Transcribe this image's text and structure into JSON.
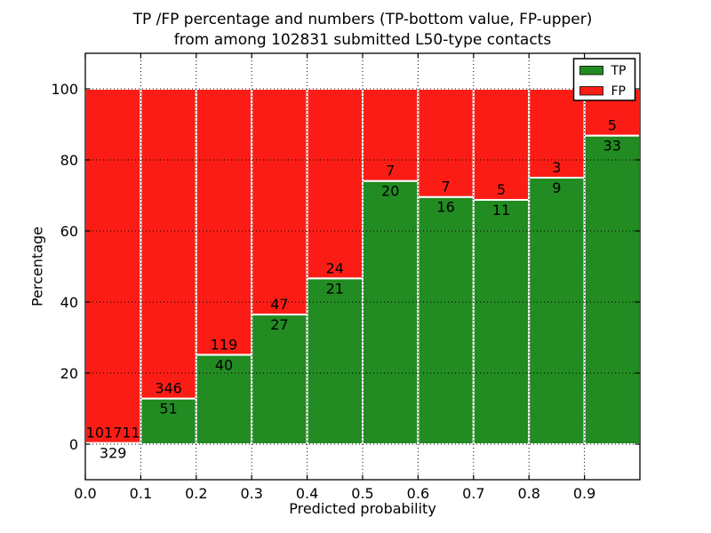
{
  "figure": {
    "background": "#ffffff",
    "title_line1": "TP /FP percentage and numbers (TP-bottom value, FP-upper)",
    "title_line2": "from among 102831 submitted L50-type contacts"
  },
  "chart_data": {
    "type": "bar",
    "stacked": true,
    "normalized": "percent_of_bin_total",
    "title": "TP /FP percentage and numbers (TP-bottom value, FP-upper) from among 102831 submitted L50-type contacts",
    "xlabel": "Predicted probability",
    "ylabel": "Percentage",
    "xlim": [
      0.0,
      1.0
    ],
    "ylim": [
      -10,
      110
    ],
    "grid": true,
    "grid_style": "dotted",
    "bin_width": 0.1,
    "bin_starts": [
      0.0,
      0.1,
      0.2,
      0.3,
      0.4,
      0.5,
      0.6,
      0.7,
      0.8,
      0.9
    ],
    "xtick_labels": [
      "0.0",
      "0.1",
      "0.2",
      "0.3",
      "0.4",
      "0.5",
      "0.6",
      "0.7",
      "0.8",
      "0.9"
    ],
    "ytick_values": [
      0,
      20,
      40,
      60,
      80,
      100
    ],
    "series": [
      {
        "name": "TP",
        "color": "#228b22",
        "counts": [
          329,
          51,
          40,
          27,
          21,
          20,
          16,
          11,
          9,
          33
        ]
      },
      {
        "name": "FP",
        "color": "#fb1d15",
        "counts": [
          101711,
          346,
          119,
          47,
          24,
          7,
          7,
          5,
          3,
          5
        ]
      }
    ],
    "tp_percent_of_bin": [
      0.32,
      12.85,
      25.16,
      36.49,
      46.67,
      74.07,
      69.57,
      68.75,
      75.0,
      86.84
    ],
    "legend": {
      "position": "upper right",
      "entries": [
        {
          "label": "TP",
          "color": "#228b22"
        },
        {
          "label": "FP",
          "color": "#fb1d15"
        }
      ]
    },
    "bar_edge_color": "#ffffff",
    "label_color": "#000000",
    "spine_color": "#000000"
  }
}
